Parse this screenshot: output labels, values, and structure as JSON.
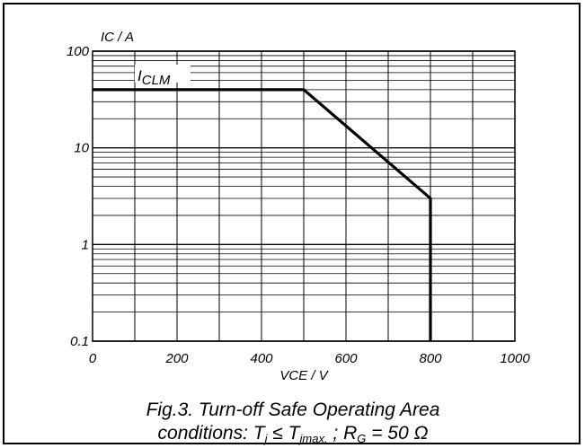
{
  "chart_data": {
    "type": "line",
    "title": "",
    "xlabel": "VCE / V",
    "ylabel": "IC / A",
    "xlim": [
      0,
      1000
    ],
    "ylim": [
      0.1,
      100
    ],
    "yscale": "log",
    "grid": true,
    "x_ticks": [
      {
        "value": 0,
        "label": "0"
      },
      {
        "value": 200,
        "label": "200"
      },
      {
        "value": 400,
        "label": "400"
      },
      {
        "value": 600,
        "label": "600"
      },
      {
        "value": 800,
        "label": "800"
      },
      {
        "value": 1000,
        "label": "1000"
      }
    ],
    "y_ticks": [
      {
        "value": 0.1,
        "label": "0.1"
      },
      {
        "value": 1,
        "label": "1"
      },
      {
        "value": 10,
        "label": "10"
      },
      {
        "value": 100,
        "label": "100"
      }
    ],
    "series": [
      {
        "x": [
          0,
          500,
          800,
          800
        ],
        "y": [
          40,
          40,
          3,
          0.1
        ]
      }
    ],
    "annotations": [
      {
        "text_main": "I",
        "text_sub": "CLM",
        "x": 120,
        "y": 40
      }
    ],
    "caption": {
      "line1": "Fig.3.   Turn-off Safe Operating Area",
      "line2_a": "conditions: T",
      "line2_b": "j",
      "line2_c": " ≤ T",
      "line2_d": "jmax.",
      "line2_e": " ; R",
      "line2_f": "G",
      "line2_g": " = 50 Ω"
    },
    "colors": {
      "line": "#000000",
      "grid": "#000000",
      "frame": "#000000"
    }
  }
}
